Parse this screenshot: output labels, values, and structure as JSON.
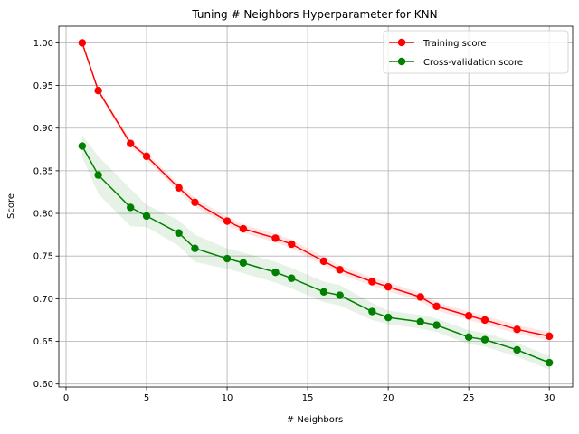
{
  "chart_data": {
    "type": "line",
    "title": "Tuning # Neighbors Hyperparameter for KNN",
    "xlabel": "# Neighbors",
    "ylabel": "Score",
    "xlim": [
      -0.45,
      31.45
    ],
    "ylim": [
      0.5965,
      1.0195
    ],
    "xticks": [
      0,
      5,
      10,
      15,
      20,
      25,
      30
    ],
    "yticks": [
      0.6,
      0.65,
      0.7,
      0.75,
      0.8,
      0.85,
      0.9,
      0.95,
      1.0
    ],
    "xtick_labels": [
      "0",
      "5",
      "10",
      "15",
      "20",
      "25",
      "30"
    ],
    "ytick_labels": [
      "0.60",
      "0.65",
      "0.70",
      "0.75",
      "0.80",
      "0.85",
      "0.90",
      "0.95",
      "1.00"
    ],
    "grid": true,
    "legend_position": "top-right",
    "x": [
      1,
      2,
      4,
      5,
      7,
      8,
      10,
      11,
      13,
      14,
      16,
      17,
      19,
      20,
      22,
      23,
      25,
      26,
      28,
      30
    ],
    "series": [
      {
        "name": "Training score",
        "color": "#ff0000",
        "values": [
          1.0,
          0.944,
          0.882,
          0.867,
          0.83,
          0.813,
          0.791,
          0.782,
          0.771,
          0.764,
          0.744,
          0.734,
          0.72,
          0.714,
          0.702,
          0.691,
          0.68,
          0.675,
          0.664,
          0.656
        ],
        "band": [
          0.0,
          0.003,
          0.004,
          0.004,
          0.005,
          0.005,
          0.005,
          0.005,
          0.005,
          0.005,
          0.005,
          0.005,
          0.005,
          0.005,
          0.005,
          0.005,
          0.005,
          0.005,
          0.005,
          0.005
        ]
      },
      {
        "name": "Cross-validation score",
        "color": "#008000",
        "values": [
          0.879,
          0.845,
          0.807,
          0.797,
          0.777,
          0.759,
          0.747,
          0.742,
          0.731,
          0.724,
          0.708,
          0.704,
          0.685,
          0.678,
          0.673,
          0.669,
          0.655,
          0.652,
          0.64,
          0.625
        ],
        "band": [
          0.013,
          0.022,
          0.022,
          0.013,
          0.015,
          0.016,
          0.012,
          0.012,
          0.012,
          0.012,
          0.012,
          0.012,
          0.01,
          0.008,
          0.008,
          0.008,
          0.008,
          0.008,
          0.008,
          0.008
        ]
      }
    ]
  }
}
